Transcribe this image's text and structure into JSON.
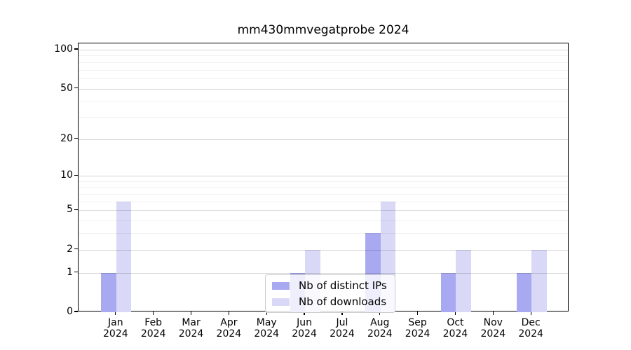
{
  "title": "mm430mmvegatprobe 2024",
  "chart_data": {
    "type": "bar",
    "title": "mm430mmvegatprobe 2024",
    "x_months": [
      "Jan",
      "Feb",
      "Mar",
      "Apr",
      "May",
      "Jun",
      "Jul",
      "Aug",
      "Sep",
      "Oct",
      "Nov",
      "Dec"
    ],
    "x_year": "2024",
    "x_categories": [
      "Jan 2024",
      "Feb 2024",
      "Mar 2024",
      "Apr 2024",
      "May 2024",
      "Jun 2024",
      "Jul 2024",
      "Aug 2024",
      "Sep 2024",
      "Oct 2024",
      "Nov 2024",
      "Dec 2024"
    ],
    "series": [
      {
        "name": "Nb of distinct IPs",
        "color": "#a9a9f1",
        "values": [
          1,
          0,
          0,
          0,
          0,
          1,
          0,
          3,
          0,
          1,
          0,
          1
        ]
      },
      {
        "name": "Nb of downloads",
        "color": "#d9d9f7",
        "values": [
          6,
          0,
          0,
          0,
          0,
          2,
          0,
          6,
          0,
          2,
          0,
          2
        ]
      }
    ],
    "y_scale": "log1p",
    "ylim": [
      0,
      100
    ],
    "y_major_ticks": [
      0,
      1,
      2,
      5,
      10,
      20,
      50,
      100
    ],
    "y_minor_gridlines": [
      3,
      4,
      6,
      7,
      8,
      9,
      30,
      40,
      60,
      70,
      80,
      90
    ],
    "grid": "horizontal",
    "legend_position": "inside-bottom-center",
    "xlabel": "",
    "ylabel": ""
  }
}
